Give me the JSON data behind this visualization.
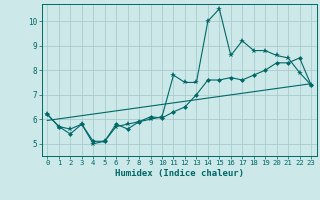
{
  "title": "",
  "xlabel": "Humidex (Indice chaleur)",
  "ylabel": "",
  "bg_color": "#cce8e8",
  "line_color": "#006868",
  "grid_color": "#aacccc",
  "xlim": [
    -0.5,
    23.5
  ],
  "ylim": [
    4.5,
    10.7
  ],
  "yticks": [
    5,
    6,
    7,
    8,
    9,
    10
  ],
  "xticks": [
    0,
    1,
    2,
    3,
    4,
    5,
    6,
    7,
    8,
    9,
    10,
    11,
    12,
    13,
    14,
    15,
    16,
    17,
    18,
    19,
    20,
    21,
    22,
    23
  ],
  "line1_x": [
    0,
    1,
    2,
    3,
    4,
    5,
    6,
    7,
    8,
    9,
    10,
    11,
    12,
    13,
    14,
    15,
    16,
    17,
    18,
    19,
    20,
    21,
    22,
    23
  ],
  "line1_y": [
    6.2,
    5.7,
    5.6,
    5.8,
    5.0,
    5.1,
    5.7,
    5.8,
    5.9,
    6.0,
    6.1,
    7.8,
    7.5,
    7.5,
    10.0,
    10.5,
    8.6,
    9.2,
    8.8,
    8.8,
    8.6,
    8.5,
    7.9,
    7.4
  ],
  "line2_x": [
    0,
    1,
    2,
    3,
    4,
    5,
    6,
    7,
    8,
    9,
    10,
    11,
    12,
    13,
    14,
    15,
    16,
    17,
    18,
    19,
    20,
    21,
    22,
    23
  ],
  "line2_y": [
    6.2,
    5.7,
    5.4,
    5.8,
    5.1,
    5.1,
    5.8,
    5.6,
    5.9,
    6.1,
    6.05,
    6.3,
    6.5,
    7.0,
    7.6,
    7.6,
    7.7,
    7.6,
    7.8,
    8.0,
    8.3,
    8.3,
    8.5,
    7.4
  ],
  "line3_x": [
    0,
    23
  ],
  "line3_y": [
    5.95,
    7.45
  ]
}
